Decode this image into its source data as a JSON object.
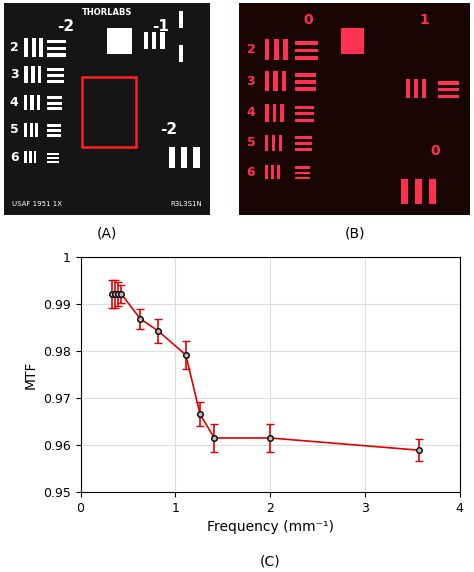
{
  "panel_a": {
    "label": "(A)",
    "brand": "THORLABS",
    "groups": [
      "-2",
      "-1",
      "-2"
    ],
    "elements": [
      "2",
      "3",
      "4",
      "5",
      "6"
    ],
    "footer_left": "USAF 1951 1X",
    "footer_right": "R3L3S1N"
  },
  "panel_b": {
    "label": "(B)",
    "groups": [
      "0",
      "1",
      "0"
    ],
    "elements": [
      "2",
      "3",
      "4",
      "5",
      "6"
    ]
  },
  "chart_data": {
    "type": "line",
    "annotations": [
      "(C)"
    ],
    "xlabel": "Frequency (mm⁻¹)",
    "ylabel": "MTF",
    "x": [
      0.33,
      0.36,
      0.39,
      0.43,
      0.63,
      0.82,
      1.11,
      1.26,
      1.41,
      2.0,
      3.57
    ],
    "values": [
      0.9922,
      0.9922,
      0.9922,
      0.9922,
      0.9869,
      0.9843,
      0.9792,
      0.9666,
      0.9615,
      0.9615,
      0.9589
    ],
    "errors": [
      0.003,
      0.003,
      0.0025,
      0.002,
      0.0022,
      0.0025,
      0.003,
      0.0025,
      0.003,
      0.003,
      0.0023
    ],
    "color": "#e00000",
    "marker": "o",
    "line_style": "solid",
    "xlim": [
      0,
      4
    ],
    "xticks": [
      0,
      1,
      2,
      3,
      4
    ],
    "ylim": [
      0.95,
      1
    ],
    "yticks": [
      0.95,
      0.96,
      0.97,
      0.98,
      0.99,
      1
    ],
    "grid": true
  }
}
